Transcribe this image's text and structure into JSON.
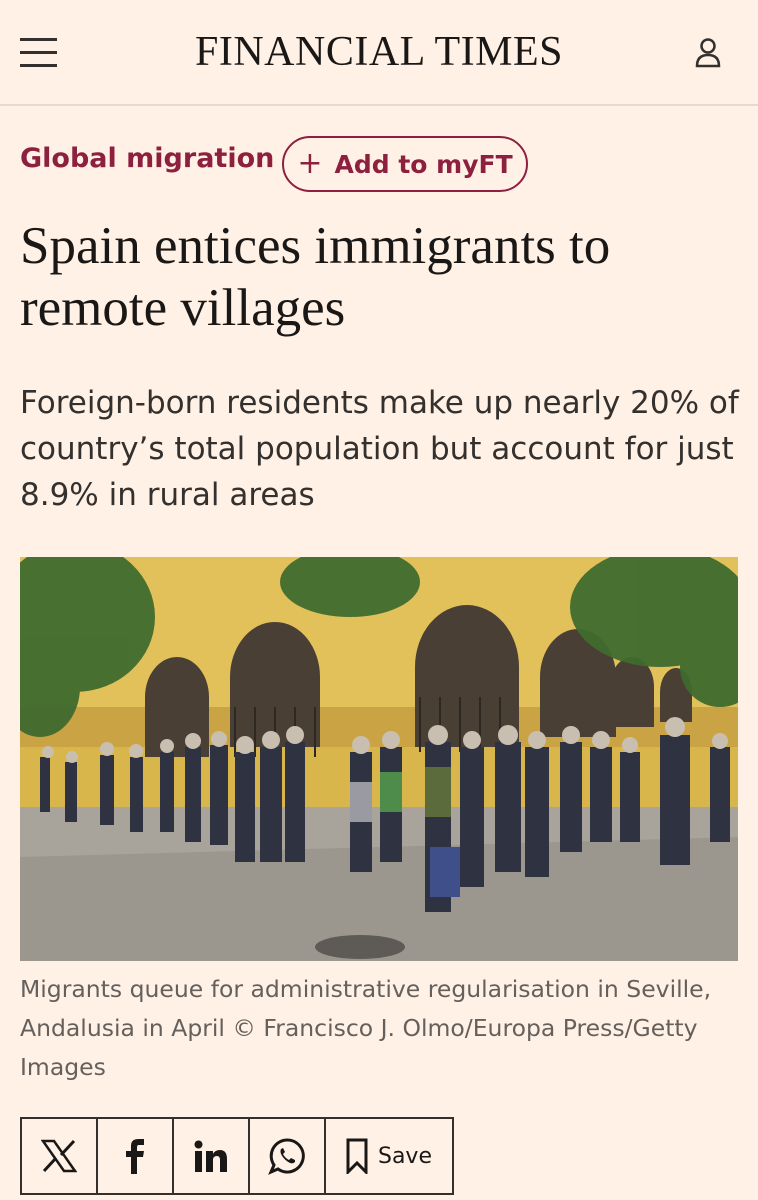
{
  "header": {
    "brand": "FINANCIAL TIMES"
  },
  "article": {
    "topic": "Global migration",
    "follow_button": "Add to myFT",
    "headline": "Spain entices immigrants to remote villages",
    "standfirst": "Foreign-born residents make up nearly 20% of country’s total population but account for just 8.9% in rural areas",
    "caption": "Migrants queue for administrative regularisation in Seville, Andalusia in April © Francisco J. Olmo/Europa Press/Getty Images"
  },
  "share": {
    "save": "Save"
  }
}
